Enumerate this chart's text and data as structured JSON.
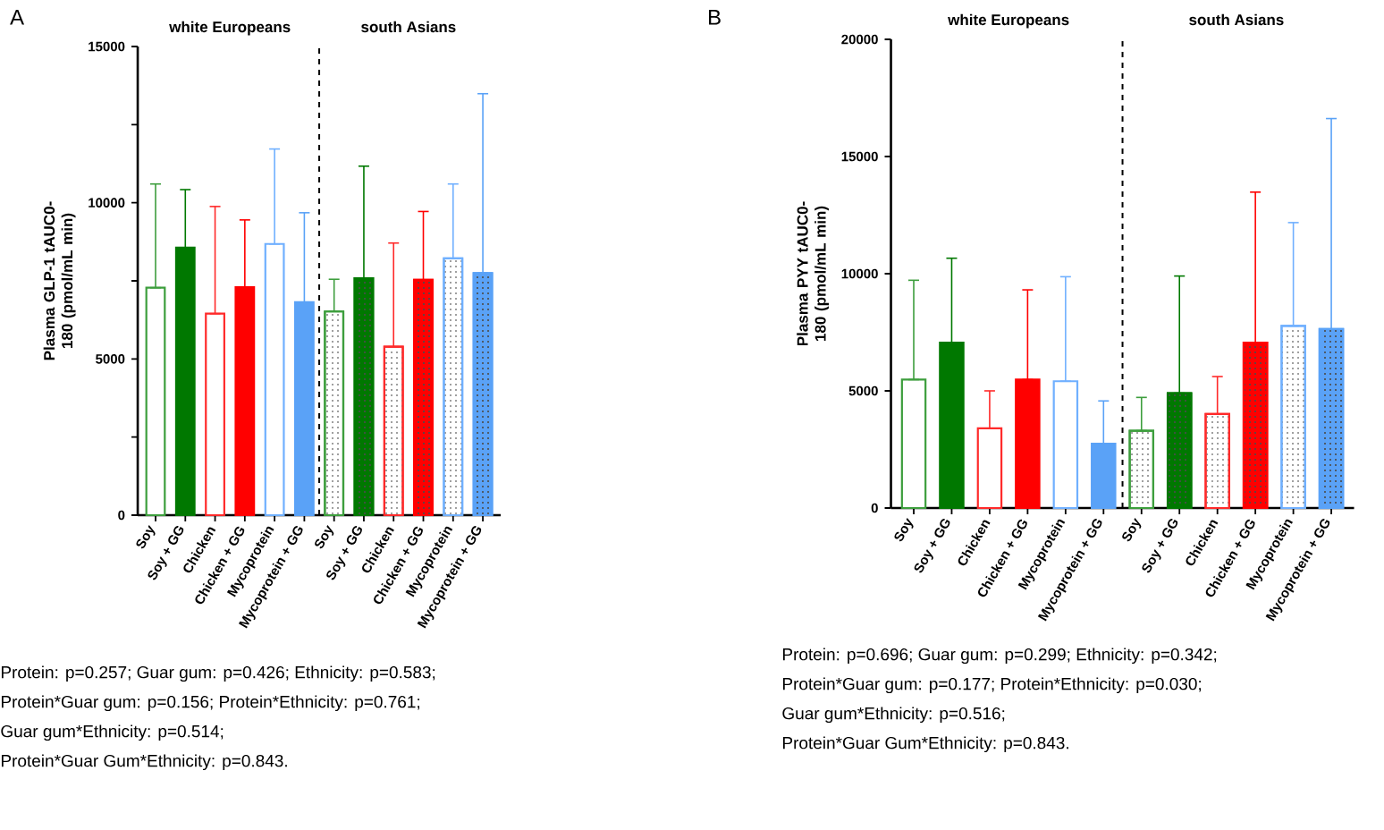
{
  "chart_data": [
    {
      "type": "bar",
      "title": "A",
      "ylabel": "Plasma GLP-1 tAUC0-180 (pmol/mL min)",
      "categories": [
        "Soy",
        "Soy + GG",
        "Chicken",
        "Chicken + GG",
        "Mycoprotein",
        "Mycoprotein + GG",
        "Soy",
        "Soy + GG",
        "Chicken",
        "Chicken + GG",
        "Mycoprotein",
        "Mycoprotein + GG"
      ],
      "series": [
        {
          "values": [
            7280,
            null,
            6450,
            null,
            8680,
            null,
            null,
            null,
            null,
            null,
            null,
            null
          ],
          "colors": [
            "#3d9e3d",
            null,
            "#ff2a2a",
            null,
            "#70b0ff",
            null,
            null,
            null,
            null,
            null,
            null,
            null
          ],
          "errors": [
            [
              7280,
              10600
            ],
            null,
            [
              6450,
              9880
            ],
            null,
            [
              8680,
              11720
            ],
            null,
            null,
            null,
            null,
            null,
            null,
            null
          ]
        },
        {
          "values": [
            null,
            8560,
            null,
            7300,
            null,
            6820,
            null,
            null,
            null,
            null,
            null,
            null
          ],
          "colors": [
            null,
            "#007800",
            null,
            "#ff0000",
            null,
            "#5aa2f7",
            null,
            null,
            null,
            null,
            null,
            null
          ],
          "errors": [
            null,
            [
              8560,
              10420
            ],
            null,
            [
              7300,
              9450
            ],
            null,
            [
              6820,
              9680
            ],
            null,
            null,
            null,
            null,
            null,
            null
          ]
        },
        {
          "values": [
            null,
            null,
            null,
            null,
            null,
            null,
            6520,
            null,
            5390,
            null,
            8220,
            null
          ],
          "colors": [
            null,
            null,
            null,
            null,
            null,
            null,
            "#3d9e3d",
            null,
            "#ff2a2a",
            null,
            "#70b0ff",
            null
          ],
          "errors": [
            null,
            null,
            null,
            null,
            null,
            null,
            [
              6520,
              7550
            ],
            null,
            [
              5390,
              8710
            ],
            null,
            [
              8220,
              10600
            ],
            null
          ]
        },
        {
          "values": [
            null,
            null,
            null,
            null,
            null,
            null,
            null,
            7580,
            null,
            7530,
            null,
            7750
          ],
          "colors": [
            null,
            null,
            null,
            null,
            null,
            null,
            null,
            "#007800",
            null,
            "#ff0000",
            null,
            "#5aa2f7"
          ],
          "errors": [
            null,
            null,
            null,
            null,
            null,
            null,
            null,
            [
              7580,
              11170
            ],
            null,
            [
              7530,
              9720
            ],
            null,
            [
              7750,
              13490
            ]
          ]
        }
      ],
      "ylim": [
        0,
        15000
      ],
      "yticks": [
        0,
        {
          "value": 2500,
          "label": null
        },
        5000,
        {
          "value": 7500,
          "label": null
        },
        10000,
        {
          "value": 12500,
          "label": null
        },
        15000
      ],
      "annotations": [
        "white Europeans",
        "south Asians",
        "Protein: p=0.257; Guar gum: p=0.426; Ethnicity: p=0.583;",
        "Protein*Guar gum: p=0.156; Protein*Ethnicity: p=0.761;",
        "Guar gum*Ethnicity: p=0.514;",
        "Protein*Guar Gum*Ethnicity: p=0.843."
      ]
    },
    {
      "type": "bar",
      "title": "B",
      "ylabel": "Plasma PYY tAUC0-180 (pmol/mL min)",
      "categories": [
        "Soy",
        "Soy + GG",
        "Chicken",
        "Chicken + GG",
        "Mycoprotein",
        "Mycoprotein + GG",
        "Soy",
        "Soy + GG",
        "Chicken",
        "Chicken + GG",
        "Mycoprotein",
        "Mycoprotein + GG"
      ],
      "series": [
        {
          "values": [
            5480,
            null,
            3400,
            null,
            5410,
            null,
            null,
            null,
            null,
            null,
            null,
            null
          ],
          "colors": [
            "#3d9e3d",
            null,
            "#ff2a2a",
            null,
            "#70b0ff",
            null,
            null,
            null,
            null,
            null,
            null,
            null
          ],
          "errors": [
            [
              5480,
              9720
            ],
            null,
            [
              3400,
              5000
            ],
            null,
            [
              5410,
              9870
            ],
            null,
            null,
            null,
            null,
            null,
            null,
            null
          ]
        },
        {
          "values": [
            null,
            7060,
            null,
            5480,
            null,
            2740,
            null,
            null,
            null,
            null,
            null,
            null
          ],
          "colors": [
            null,
            "#007800",
            null,
            "#ff0000",
            null,
            "#5aa2f7",
            null,
            null,
            null,
            null,
            null,
            null
          ],
          "errors": [
            null,
            [
              7060,
              10660
            ],
            null,
            [
              5480,
              9310
            ],
            null,
            [
              2740,
              4570
            ],
            null,
            null,
            null,
            null,
            null,
            null
          ]
        },
        {
          "values": [
            null,
            null,
            null,
            null,
            null,
            null,
            3300,
            null,
            4010,
            null,
            7770,
            null
          ],
          "colors": [
            null,
            null,
            null,
            null,
            null,
            null,
            "#3d9e3d",
            null,
            "#ff2a2a",
            null,
            "#70b0ff",
            null
          ],
          "errors": [
            null,
            null,
            null,
            null,
            null,
            null,
            [
              3300,
              4720
            ],
            null,
            [
              4010,
              5610
            ],
            null,
            [
              7770,
              12180
            ],
            null
          ]
        },
        {
          "values": [
            null,
            null,
            null,
            null,
            null,
            null,
            null,
            4900,
            null,
            7060,
            null,
            7640
          ],
          "colors": [
            null,
            null,
            null,
            null,
            null,
            null,
            null,
            "#007800",
            null,
            "#ff0000",
            null,
            "#5aa2f7"
          ],
          "errors": [
            null,
            null,
            null,
            null,
            null,
            null,
            null,
            [
              4900,
              9900
            ],
            null,
            [
              7060,
              13480
            ],
            null,
            [
              7640,
              16620
            ]
          ]
        }
      ],
      "ylim": [
        0,
        20000
      ],
      "yticks": [
        0,
        5000,
        10000,
        15000,
        20000
      ],
      "annotations": [
        "white Europeans",
        "south Asians",
        "Protein: p=0.696; Guar gum: p=0.299; Ethnicity: p=0.342;",
        "Protein*Guar gum: p=0.177; Protein*Ethnicity: p=0.030;",
        "Guar gum*Ethnicity: p=0.516;",
        "Protein*Guar Gum*Ethnicity: p=0.843."
      ]
    }
  ]
}
